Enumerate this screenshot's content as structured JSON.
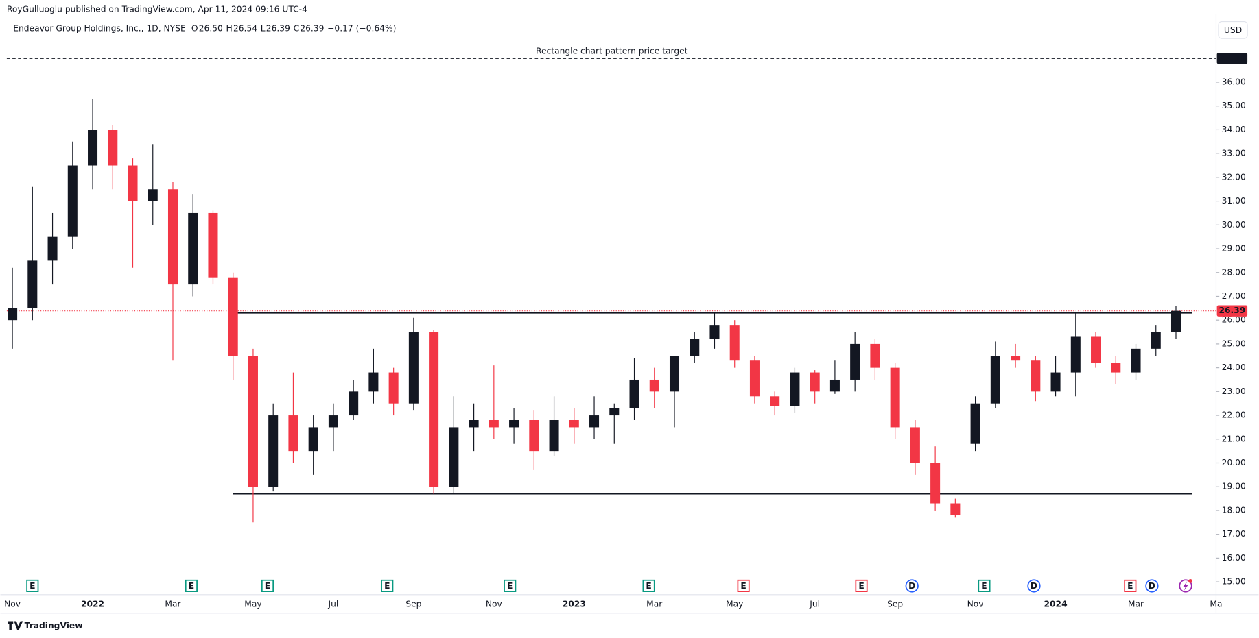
{
  "header": {
    "publisher": "RoyGulluoglu published on TradingView.com, Apr 11, 2024 09:16 UTC-4",
    "currency": "USD",
    "brand": "TradingView"
  },
  "legend": {
    "name": "Endeavor Group Holdings, Inc., 1D, NYSE",
    "ohlc": [
      {
        "key": "O",
        "value": "26.50"
      },
      {
        "key": "H",
        "value": "26.54"
      },
      {
        "key": "L",
        "value": "26.39"
      },
      {
        "key": "C",
        "value": "26.39"
      }
    ],
    "change": "−0.17 (−0.64%)"
  },
  "chart_data": {
    "type": "candlestick",
    "categories": [
      "Nov",
      null,
      null,
      null,
      "2022",
      null,
      null,
      null,
      "Mar",
      null,
      null,
      null,
      "May",
      null,
      null,
      null,
      "Jul",
      null,
      null,
      null,
      "Sep",
      null,
      null,
      null,
      "Nov",
      null,
      null,
      null,
      "2023",
      null,
      null,
      null,
      "Mar",
      null,
      null,
      null,
      "May",
      null,
      null,
      null,
      "Jul",
      null,
      null,
      null,
      "Sep",
      null,
      null,
      null,
      "Nov",
      null,
      null,
      null,
      "2024",
      null,
      null,
      null,
      "Mar",
      null,
      null,
      null,
      "Ma"
    ],
    "open": [
      26,
      26.5,
      28.5,
      29.5,
      32.5,
      34,
      32.5,
      31,
      31.5,
      27.5,
      30.5,
      27.8,
      24.5,
      19,
      22,
      20.5,
      21.5,
      22,
      23,
      23.8,
      22.5,
      25.5,
      19,
      21.5,
      21.8,
      21.5,
      21.8,
      20.5,
      21.8,
      21.5,
      22,
      22.3,
      23.5,
      23,
      24.5,
      25.2,
      25.8,
      24.3,
      22.8,
      22.4,
      23.8,
      23,
      23.5,
      25,
      24,
      21.5,
      20,
      18.3,
      20.8,
      22.5,
      24.5,
      24.3,
      23,
      23.8,
      25.3,
      24.2,
      23.8,
      24.8,
      25.5,
      null,
      null
    ],
    "high": [
      28.2,
      31.6,
      30.5,
      33.5,
      35.3,
      34.2,
      32.8,
      33.4,
      31.8,
      31.3,
      30.6,
      28,
      24.8,
      22.5,
      23.8,
      22,
      22.5,
      23.5,
      24.8,
      24,
      26.1,
      25.6,
      22.8,
      22.5,
      24.1,
      22.3,
      22.2,
      22.8,
      22.3,
      22.8,
      22.5,
      24.4,
      24,
      24.5,
      25.5,
      26.3,
      26,
      24.5,
      23,
      24,
      23.9,
      24.3,
      25.5,
      25.2,
      24.2,
      21.8,
      20.7,
      18.5,
      22.8,
      25.1,
      25,
      24.5,
      24.5,
      26.3,
      25.5,
      24.5,
      25,
      25.8,
      26.6,
      null,
      null
    ],
    "low": [
      24.8,
      26,
      27.5,
      29,
      31.5,
      31.5,
      28.2,
      30,
      24.3,
      27,
      27.5,
      23.5,
      17.5,
      18.8,
      20,
      19.5,
      20.5,
      21.8,
      22.5,
      22,
      22.2,
      18.7,
      18.7,
      20.5,
      21,
      20.8,
      19.7,
      20.3,
      20.8,
      21,
      20.8,
      21.8,
      22.3,
      21.5,
      24.2,
      24.8,
      24,
      22.5,
      22,
      22.1,
      22.5,
      22.9,
      23,
      23.5,
      21,
      19.5,
      18,
      17.7,
      20.5,
      22.3,
      24,
      22.6,
      22.8,
      22.8,
      24,
      23.3,
      23.5,
      24.5,
      25.2,
      null,
      null
    ],
    "close": [
      26.5,
      28.5,
      29.5,
      32.5,
      34,
      32.5,
      31,
      31.5,
      27.5,
      30.5,
      27.8,
      24.5,
      19,
      22,
      20.5,
      21.5,
      22,
      23,
      23.8,
      22.5,
      25.5,
      19,
      21.5,
      21.8,
      21.5,
      21.8,
      20.5,
      21.8,
      21.5,
      22,
      22.3,
      23.5,
      23,
      24.5,
      25.2,
      25.8,
      24.3,
      22.8,
      22.4,
      23.8,
      23,
      23.5,
      25,
      24,
      21.5,
      20,
      18.3,
      17.8,
      22.5,
      24.5,
      24.3,
      23,
      23.8,
      25.3,
      24.2,
      23.8,
      24.8,
      25.5,
      26.39,
      null,
      null
    ],
    "up_color": "#131722",
    "down_color": "#f23645",
    "ylim": [
      14.46,
      38.85
    ],
    "yticks": [
      {
        "value": 15,
        "label": "15.00"
      },
      {
        "value": 16,
        "label": "16.00"
      },
      {
        "value": 17,
        "label": "17.00"
      },
      {
        "value": 18,
        "label": "18.00"
      },
      {
        "value": 19,
        "label": "19.00"
      },
      {
        "value": 20,
        "label": "20.00"
      },
      {
        "value": 21,
        "label": "21.00"
      },
      {
        "value": 22,
        "label": "22.00"
      },
      {
        "value": 23,
        "label": "23.00"
      },
      {
        "value": 24,
        "label": "24.00"
      },
      {
        "value": 25,
        "label": "25.00"
      },
      {
        "value": 26,
        "label": "26.00"
      },
      {
        "value": 27,
        "label": "27.00"
      },
      {
        "value": 28,
        "label": "28.00"
      },
      {
        "value": 29,
        "label": "29.00"
      },
      {
        "value": 30,
        "label": "30.00"
      },
      {
        "value": 31,
        "label": "31.00"
      },
      {
        "value": 32,
        "label": "32.00"
      },
      {
        "value": 33,
        "label": "33.00"
      },
      {
        "value": 34,
        "label": "34.00"
      },
      {
        "value": 35,
        "label": "35.00"
      },
      {
        "value": 36,
        "label": "36.00"
      }
    ],
    "grid": false,
    "target": {
      "value": 37,
      "label": "37.00",
      "annotation": "Rectangle chart pattern price target"
    },
    "last_price": {
      "value": 26.39,
      "label": "26.39",
      "color": "#f23645"
    },
    "rectangle": {
      "top": 26.3,
      "bottom": 18.7
    },
    "events": [
      {
        "label": "E",
        "color": "#089981"
      },
      {
        "label": "E",
        "color": "#089981"
      },
      {
        "label": "E",
        "color": "#089981"
      },
      {
        "label": "E",
        "color": "#089981"
      },
      {
        "label": "E",
        "color": "#089981"
      },
      {
        "label": "E",
        "color": "#089981"
      },
      {
        "label": "E",
        "color": "#f23645"
      },
      {
        "label": "E",
        "color": "#f23645"
      },
      {
        "label": "D",
        "color": "#2962ff"
      },
      {
        "label": "E",
        "color": "#089981"
      },
      {
        "label": "D",
        "color": "#2962ff"
      },
      {
        "label": "E",
        "color": "#f23645"
      },
      {
        "label": "D",
        "color": "#2962ff"
      }
    ]
  }
}
